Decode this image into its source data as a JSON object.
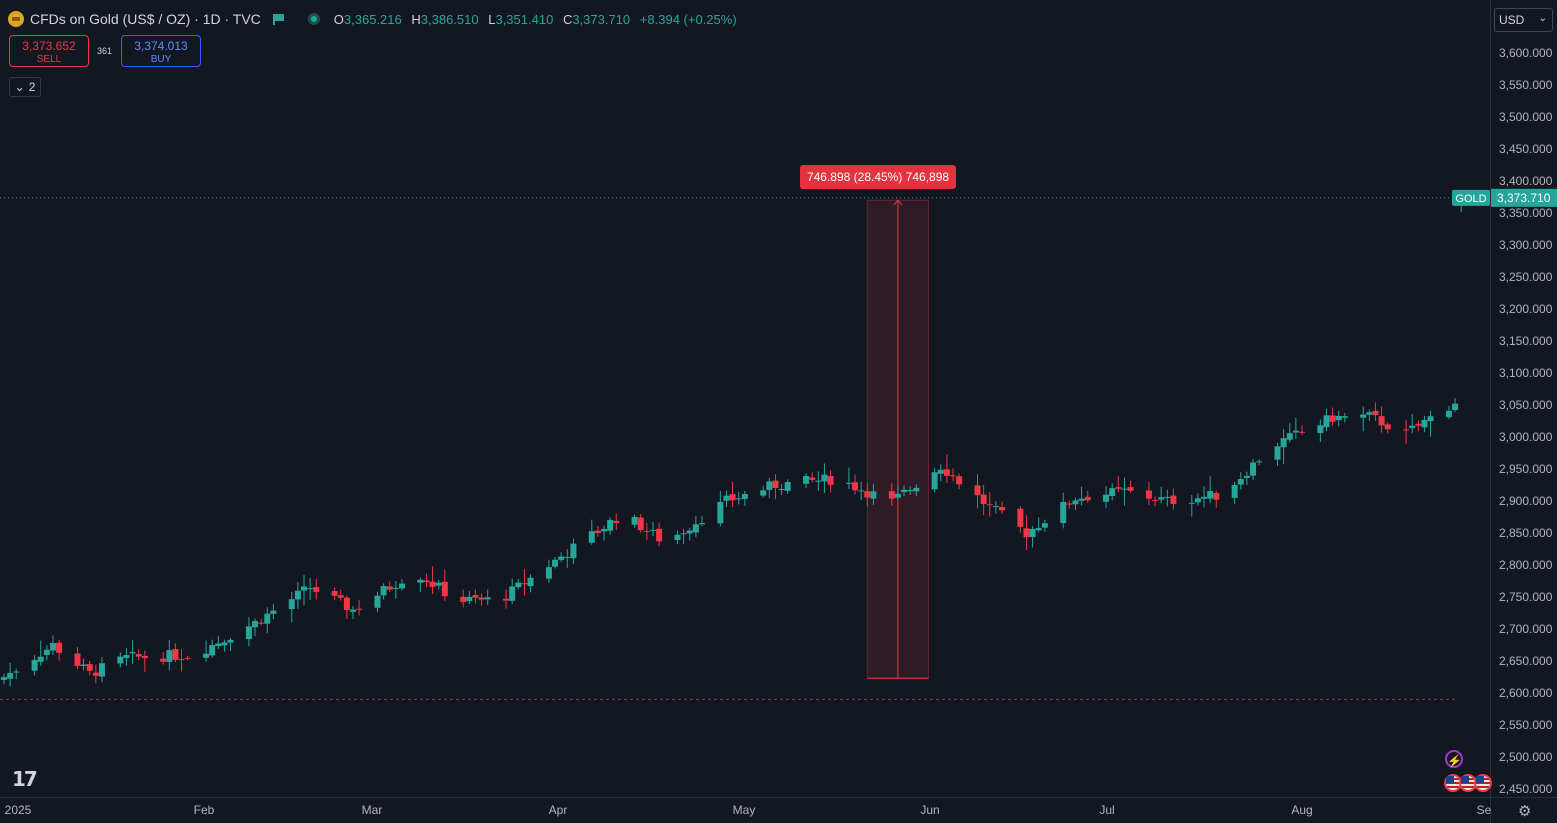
{
  "header": {
    "symbol_title": "CFDs on Gold (US$ / OZ) · 1D · TVC",
    "ohlc": {
      "o_label": "O",
      "o": "3,365.216",
      "h_label": "H",
      "h": "3,386.510",
      "l_label": "L",
      "l": "3,351.410",
      "c_label": "C",
      "c": "3,373.710",
      "change": "+8.394 (+0.25%)"
    }
  },
  "trade_buttons": {
    "sell_price": "3,373.652",
    "sell_label": "SELL",
    "spread": "361",
    "buy_price": "3,374.013",
    "buy_label": "BUY"
  },
  "indicators_toggle": {
    "count": "2"
  },
  "currency_selector": {
    "value": "USD"
  },
  "price_scale": {
    "labels": [
      "3,600.000",
      "3,550.000",
      "3,500.000",
      "3,450.000",
      "3,400.000",
      "3,350.000",
      "3,300.000",
      "3,250.000",
      "3,200.000",
      "3,150.000",
      "3,100.000",
      "3,050.000",
      "3,000.000",
      "2,950.000",
      "2,900.000",
      "2,850.000",
      "2,800.000",
      "2,750.000",
      "2,700.000",
      "2,650.000",
      "2,600.000",
      "2,550.000",
      "2,500.000",
      "2,450.000"
    ],
    "symbol_tag": "GOLD",
    "last_price_tag": "3,373.710"
  },
  "time_scale": {
    "labels": [
      "2025",
      "Feb",
      "Mar",
      "Apr",
      "May",
      "Jun",
      "Jul",
      "Aug",
      "Se"
    ]
  },
  "measure_tool": {
    "label": "746.898 (28.45%) 746,898"
  },
  "colors": {
    "up": "#26a69a",
    "down": "#f23645",
    "background": "#131722",
    "grid": "#2a2e39"
  },
  "icons": {
    "logo": "tradingview-logo-icon",
    "alert": "lightning-icon",
    "events": "us-flag-icon",
    "settings": "gear-icon"
  }
}
